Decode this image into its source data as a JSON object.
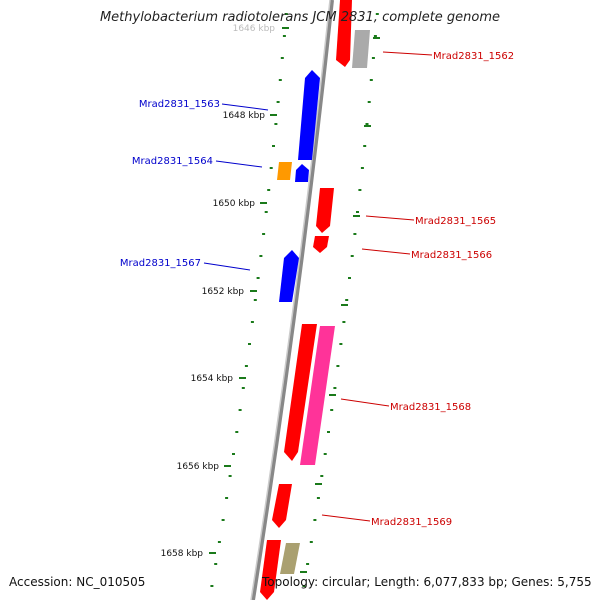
{
  "title": "Methylobacterium radiotolerans JCM 2831, complete genome",
  "footer": {
    "accession": "Accession: NC_010505",
    "summary": "Topology: circular; Length: 6,077,833 bp; Genes: 5,755"
  },
  "colors": {
    "plus_strand": "#0000ff",
    "minus_strand": "#ff0000",
    "label_plus": "#0000cc",
    "label_minus": "#cc0000",
    "tick": "#1a7a1a",
    "backbone": "#888888",
    "orange": "#ff9900",
    "magenta": "#ff3399",
    "gray": "#aaaaaa",
    "olive": "#aaa070"
  },
  "ticks": [
    {
      "label": "1646 kbp"
    },
    {
      "label": "1648 kbp"
    },
    {
      "label": "1650 kbp"
    },
    {
      "label": "1652 kbp"
    },
    {
      "label": "1654 kbp"
    },
    {
      "label": "1656 kbp"
    },
    {
      "label": "1658 kbp"
    }
  ],
  "gene_labels": [
    {
      "text": "Mrad2831_1562",
      "strand": "minus"
    },
    {
      "text": "Mrad2831_1563",
      "strand": "plus"
    },
    {
      "text": "Mrad2831_1564",
      "strand": "plus"
    },
    {
      "text": "Mrad2831_1565",
      "strand": "minus"
    },
    {
      "text": "Mrad2831_1566",
      "strand": "minus"
    },
    {
      "text": "Mrad2831_1567",
      "strand": "plus"
    },
    {
      "text": "Mrad2831_1568",
      "strand": "minus"
    },
    {
      "text": "Mrad2831_1569",
      "strand": "minus"
    }
  ]
}
